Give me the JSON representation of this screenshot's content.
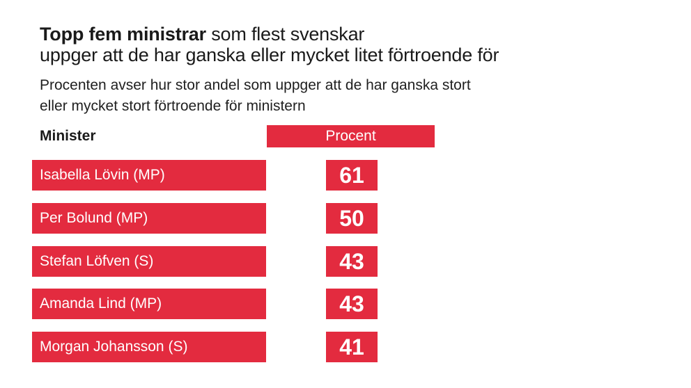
{
  "header": {
    "title_bold": "Topp fem ministrar",
    "title_rest": " som flest svenskar",
    "title_line2": "uppger att de har ganska eller mycket litet förtroende för",
    "subtitle_line1": "Procenten avser hur stor andel som uppger att de har ganska stort",
    "subtitle_line2": "eller mycket stort förtroende för ministern"
  },
  "columns": {
    "minister": "Minister",
    "percent": "Procent"
  },
  "colors": {
    "accent": "#e32b3f",
    "text": "#1a1a1a"
  },
  "chart_data": {
    "type": "table",
    "title": "Topp fem ministrar som flest svenskar uppger att de har ganska eller mycket litet förtroende för",
    "subtitle": "Procenten avser hur stor andel som uppger att de har ganska stort eller mycket stort förtroende för ministern",
    "columns": [
      "Minister",
      "Procent"
    ],
    "rows": [
      {
        "name": "Isabella Lövin (MP)",
        "value": "61"
      },
      {
        "name": "Per Bolund (MP)",
        "value": "50"
      },
      {
        "name": "Stefan Löfven (S)",
        "value": "43"
      },
      {
        "name": "Amanda Lind (MP)",
        "value": "43"
      },
      {
        "name": "Morgan Johansson (S)",
        "value": "41"
      }
    ]
  }
}
